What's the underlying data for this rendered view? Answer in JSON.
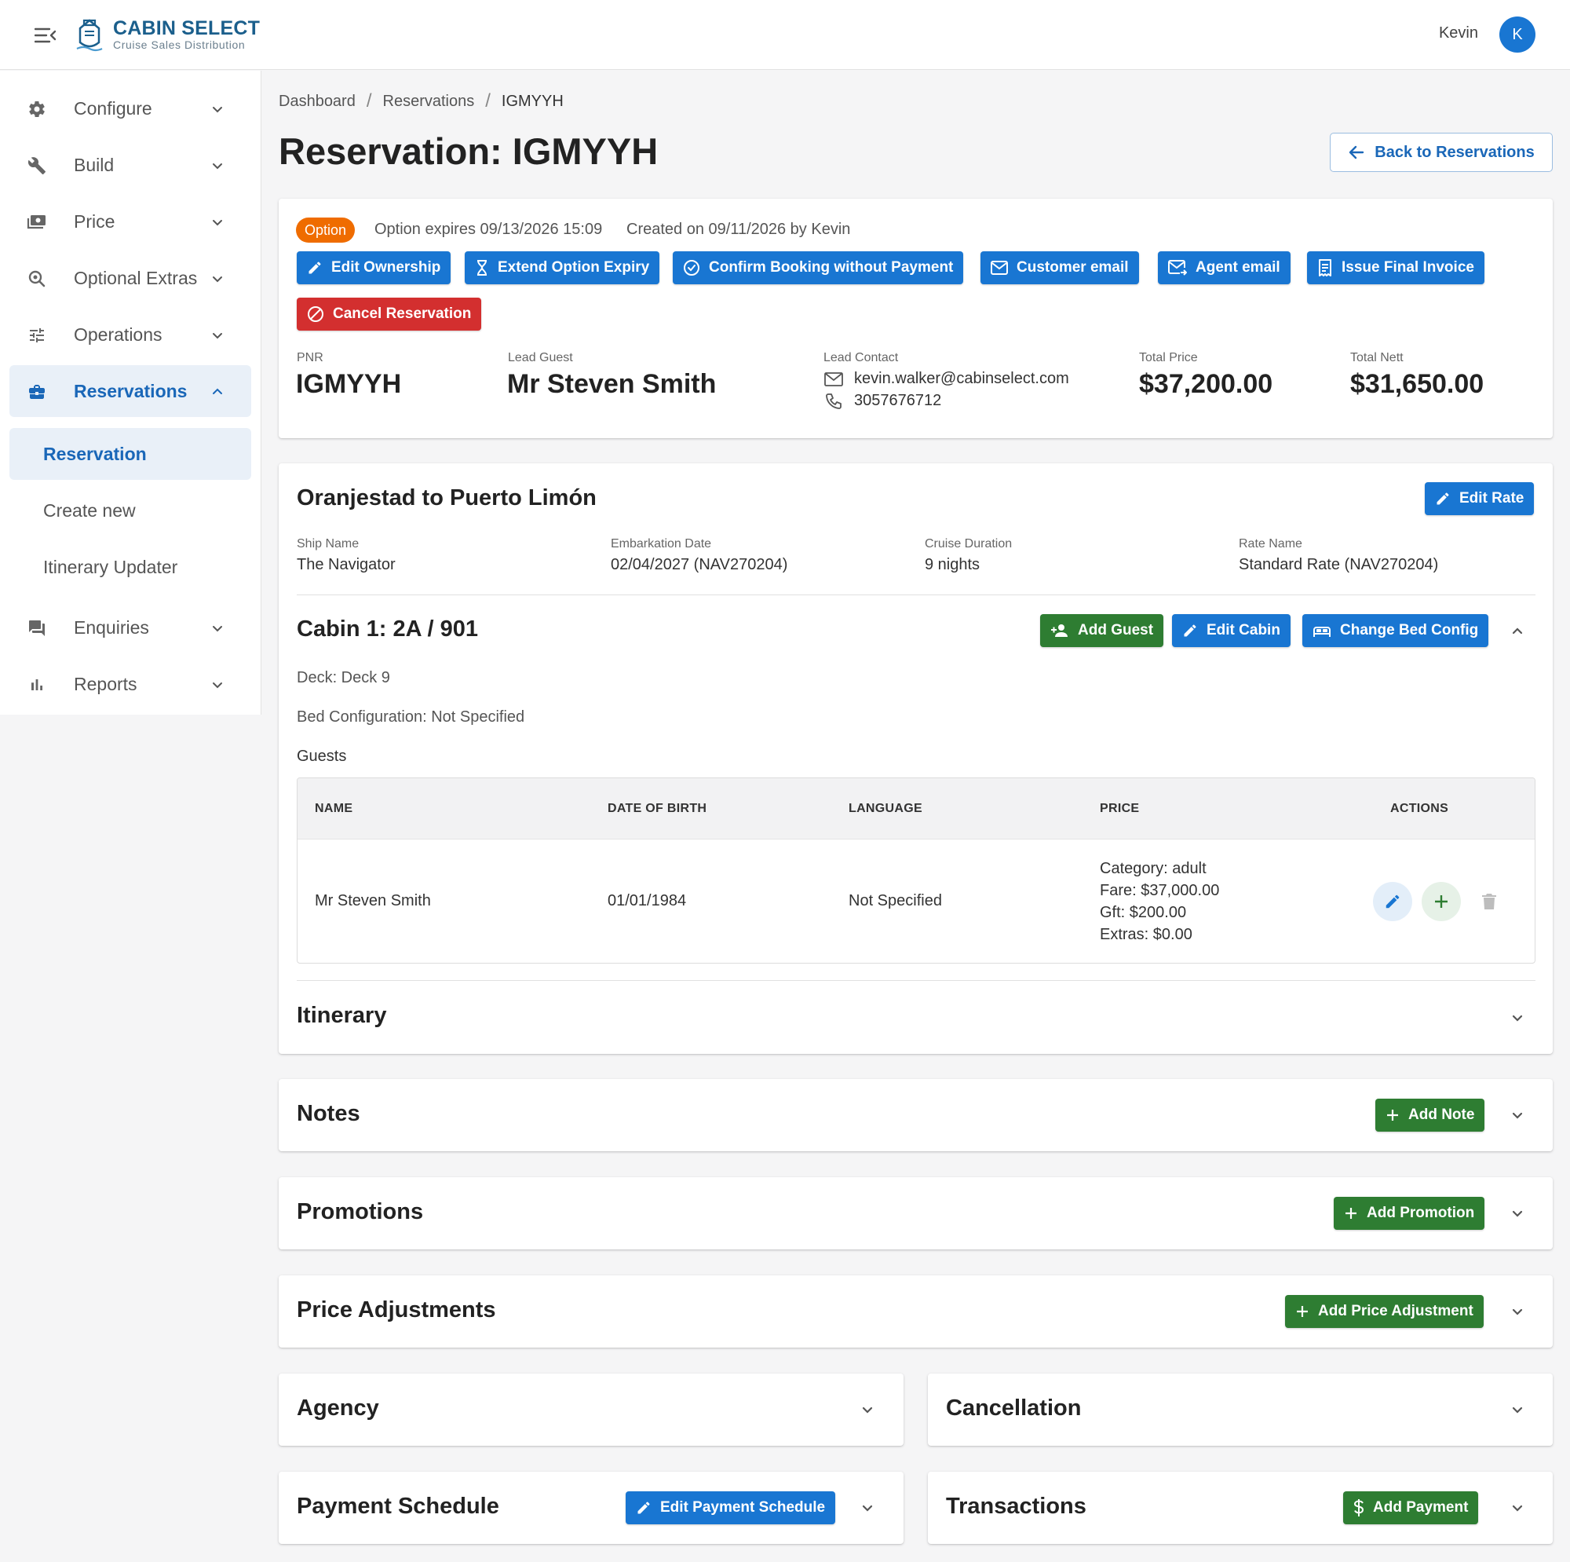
{
  "app": {
    "brand_title": "CABIN SELECT",
    "brand_subtitle": "Cruise Sales Distribution",
    "user_name": "Kevin",
    "user_initial": "K"
  },
  "sidebar": {
    "items": [
      {
        "label": "Configure",
        "icon": "gear-icon"
      },
      {
        "label": "Build",
        "icon": "wrench-icon"
      },
      {
        "label": "Price",
        "icon": "money-icon"
      },
      {
        "label": "Optional Extras",
        "icon": "search-settings-icon"
      },
      {
        "label": "Operations",
        "icon": "tune-icon"
      },
      {
        "label": "Reservations",
        "icon": "briefcase-icon"
      },
      {
        "label": "Enquiries",
        "icon": "forum-icon"
      },
      {
        "label": "Reports",
        "icon": "bar-chart-icon"
      }
    ],
    "subitems": [
      "Reservation",
      "Create new",
      "Itinerary Updater"
    ]
  },
  "breadcrumb": [
    "Dashboard",
    "Reservations",
    "IGMYYH"
  ],
  "page": {
    "title": "Reservation: IGMYYH",
    "back_label": "Back to Reservations"
  },
  "summary": {
    "status_badge": "Option",
    "option_expires": "Option expires 09/13/2026 15:09",
    "created_on": "Created on 09/11/2026 by Kevin",
    "actions": {
      "edit_ownership": "Edit Ownership",
      "extend_option": "Extend Option Expiry",
      "confirm_booking": "Confirm Booking without Payment",
      "customer_email": "Customer email",
      "agent_email": "Agent email",
      "issue_invoice": "Issue Final Invoice",
      "cancel_reservation": "Cancel Reservation"
    },
    "pnr_label": "PNR",
    "pnr": "IGMYYH",
    "lead_guest_label": "Lead Guest",
    "lead_guest": "Mr Steven Smith",
    "lead_contact_label": "Lead Contact",
    "email": "kevin.walker@cabinselect.com",
    "phone": "3057676712",
    "total_price_label": "Total Price",
    "total_price": "$37,200.00",
    "total_nett_label": "Total Nett",
    "total_nett": "$31,650.00"
  },
  "cruise": {
    "title": "Oranjestad to Puerto Limón",
    "edit_rate": "Edit Rate",
    "ship_label": "Ship Name",
    "ship": "The Navigator",
    "embark_label": "Embarkation Date",
    "embark": "02/04/2027 (NAV270204)",
    "duration_label": "Cruise Duration",
    "duration": "9 nights",
    "rate_label": "Rate Name",
    "rate": "Standard Rate (NAV270204)"
  },
  "cabin": {
    "title": "Cabin 1: 2A / 901",
    "add_guest": "Add Guest",
    "edit_cabin": "Edit Cabin",
    "change_bed": "Change Bed Config",
    "deck": "Deck: Deck 9",
    "bed_config": "Bed Configuration: Not Specified",
    "guests_label": "Guests",
    "columns": [
      "NAME",
      "DATE OF BIRTH",
      "LANGUAGE",
      "PRICE",
      "ACTIONS"
    ],
    "guests": [
      {
        "name": "Mr Steven Smith",
        "dob": "01/01/1984",
        "language": "Not Specified",
        "price_lines": [
          "Category: adult",
          "Fare: $37,000.00",
          "Gft: $200.00",
          "Extras: $0.00"
        ]
      }
    ]
  },
  "sections": {
    "itinerary": "Itinerary",
    "notes": "Notes",
    "add_note": "Add Note",
    "promotions": "Promotions",
    "add_promotion": "Add Promotion",
    "price_adjustments": "Price Adjustments",
    "add_price_adjustment": "Add Price Adjustment",
    "agency": "Agency",
    "cancellation": "Cancellation",
    "payment_schedule": "Payment Schedule",
    "edit_payment_schedule": "Edit Payment Schedule",
    "transactions": "Transactions",
    "add_payment": "Add Payment"
  },
  "colors": {
    "primary": "#1976d2",
    "success": "#2e7d32",
    "danger": "#d32f2f",
    "warning": "#ef6c00",
    "brand": "#1b5f8c"
  }
}
